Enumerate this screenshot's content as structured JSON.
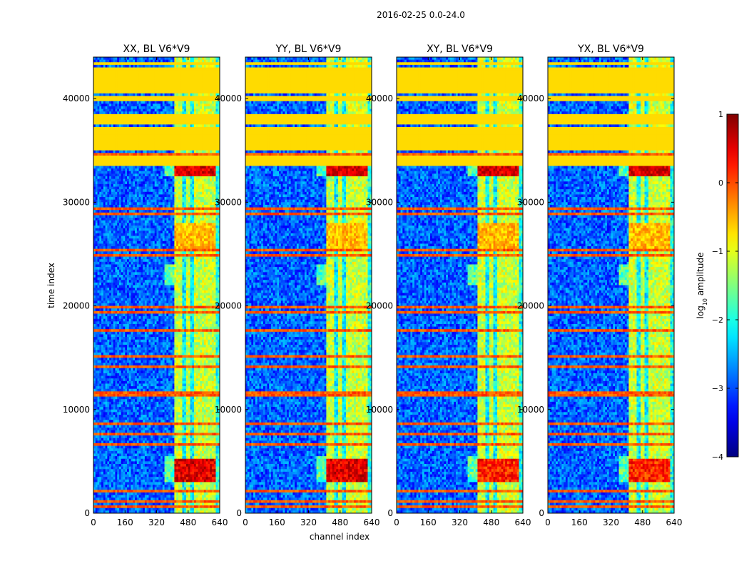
{
  "figure": {
    "suptitle": "2016-02-25 0.0-24.0",
    "xlabel": "channel index",
    "ylabel": "time index"
  },
  "chart_data": {
    "type": "heatmap",
    "panels": [
      {
        "title": "XX, BL V6*V9",
        "mode": "parallel"
      },
      {
        "title": "YY, BL V6*V9",
        "mode": "parallel"
      },
      {
        "title": "XY, BL V6*V9",
        "mode": "cross"
      },
      {
        "title": "YX, BL V6*V9",
        "mode": "cross"
      }
    ],
    "xlim": [
      0,
      640
    ],
    "ylim": [
      0,
      44000
    ],
    "xticks": [
      0,
      160,
      320,
      480,
      640
    ],
    "yticks": [
      0,
      10000,
      20000,
      30000,
      40000
    ],
    "colorbar": {
      "label": "log10 amplitude",
      "label_main": "log",
      "label_sub": "10",
      "label_rest": " amplitude",
      "range": [
        -4,
        1
      ],
      "ticks": [
        1,
        0,
        -1,
        -2,
        -3,
        -4
      ],
      "tick_labels": [
        "1",
        "0",
        "−1",
        "−2",
        "−3",
        "−4"
      ],
      "colormap": "jet"
    },
    "features": {
      "flagged_value": -0.7,
      "flagged_time_ranges": [
        [
          33500,
          34600
        ],
        [
          35000,
          37200
        ],
        [
          37600,
          38600
        ],
        [
          39800,
          40200
        ],
        [
          40600,
          43000
        ],
        [
          43200,
          43400
        ]
      ],
      "hot_band_channels": [
        410,
        620
      ],
      "bright_time_ranges": [
        [
          32500,
          33400
        ],
        [
          3000,
          5200
        ],
        [
          25500,
          28000
        ]
      ],
      "rfi_line_times": [
        700,
        1100,
        2200,
        6600,
        7600,
        8600,
        11500,
        14200,
        15100,
        17600,
        19300,
        19800,
        24800,
        25400,
        28800,
        29300,
        34600,
        38000,
        43300
      ]
    }
  }
}
